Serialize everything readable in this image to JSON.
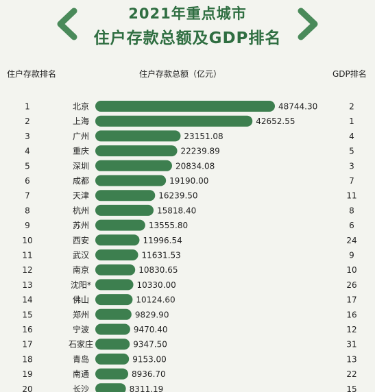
{
  "title": {
    "line1": "2021年重点城市",
    "line2": "住户存款总额及GDP排名"
  },
  "headers": {
    "rank": "住户存款排名",
    "deposit": "住户存款总额（亿元）",
    "gdp": "GDP排名"
  },
  "icons": [
    "chevron-left-icon",
    "chevron-right-icon"
  ],
  "colors": {
    "bar": "#3d7f4f",
    "title": "#2f6e41",
    "chevron": "#4a8a5a"
  },
  "chart_data": {
    "type": "bar",
    "orientation": "horizontal",
    "categories": [
      "北京",
      "上海",
      "广州",
      "重庆",
      "深圳",
      "成都",
      "天津",
      "杭州",
      "苏州",
      "西安",
      "武汉",
      "南京",
      "沈阳*",
      "佛山",
      "郑州",
      "宁波",
      "石家庄",
      "青岛",
      "南通",
      "长沙"
    ],
    "deposit_rank": [
      "1",
      "2",
      "3",
      "4",
      "5",
      "6",
      "7",
      "8",
      "9",
      "10",
      "11",
      "12",
      "13",
      "14",
      "15",
      "16",
      "17",
      "18",
      "19",
      "20"
    ],
    "values": [
      48744.3,
      42652.55,
      23151.08,
      22239.89,
      20834.08,
      19190.0,
      16239.5,
      15818.4,
      13555.8,
      11996.54,
      11631.53,
      10830.65,
      10330.0,
      10124.6,
      9829.9,
      9470.4,
      9347.5,
      9153.0,
      8936.7,
      8311.19
    ],
    "value_labels": [
      "48744.30",
      "42652.55",
      "23151.08",
      "22239.89",
      "20834.08",
      "19190.00",
      "16239.50",
      "15818.40",
      "13555.80",
      "11996.54",
      "11631.53",
      "10830.65",
      "10330.00",
      "10124.60",
      "9829.90",
      "9470.40",
      "9347.50",
      "9153.00",
      "8936.70",
      "8311.19"
    ],
    "gdp_rank": [
      "2",
      "1",
      "4",
      "5",
      "3",
      "7",
      "11",
      "8",
      "6",
      "24",
      "9",
      "10",
      "26",
      "17",
      "16",
      "12",
      "31",
      "13",
      "22",
      "15"
    ]
  }
}
